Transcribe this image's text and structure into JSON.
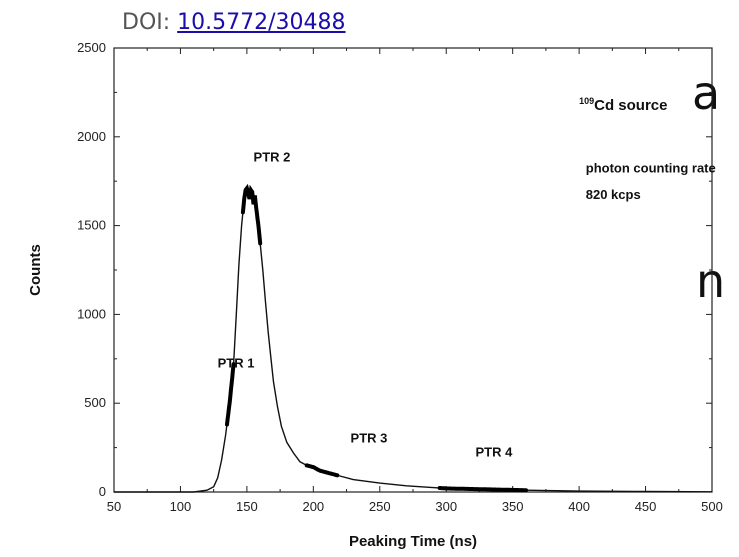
{
  "header": {
    "doi_prefix": "DOI:",
    "doi_link": "10.5772/30488"
  },
  "cropped_text": {
    "line1": "a",
    "line2": "n"
  },
  "chart_data": {
    "type": "line",
    "title": "",
    "xlabel": "Peaking Time (ns)",
    "ylabel": "Counts",
    "xlim": [
      50,
      500
    ],
    "ylim": [
      0,
      2500
    ],
    "xticks": [
      50,
      100,
      150,
      200,
      250,
      300,
      350,
      400,
      450,
      500
    ],
    "yticks": [
      0,
      500,
      1000,
      1500,
      2000,
      2500
    ],
    "grid": false,
    "legend": "none",
    "series": [
      {
        "x": [
          110,
          120,
          125,
          128,
          131,
          134,
          137,
          140,
          142,
          144,
          146,
          148,
          149,
          150,
          151,
          152,
          153,
          154,
          155,
          156,
          157,
          158,
          159,
          160,
          162,
          164,
          166,
          168,
          170,
          173,
          176,
          180,
          185,
          190,
          195,
          200,
          205,
          210,
          220,
          230,
          250,
          270,
          300,
          330,
          360,
          400,
          450,
          500
        ],
        "y": [
          0,
          10,
          30,
          80,
          180,
          320,
          500,
          720,
          1000,
          1280,
          1500,
          1650,
          1700,
          1710,
          1680,
          1650,
          1700,
          1690,
          1620,
          1670,
          1600,
          1540,
          1480,
          1400,
          1250,
          1070,
          900,
          760,
          620,
          480,
          370,
          280,
          220,
          170,
          150,
          140,
          120,
          110,
          90,
          70,
          50,
          35,
          20,
          15,
          10,
          5,
          3,
          1
        ]
      }
    ],
    "annotations": [
      {
        "text": "PTR 1",
        "x": 128,
        "y": 700
      },
      {
        "text": "PTR 2",
        "x": 155,
        "y": 1860
      },
      {
        "text": "PTR 3",
        "x": 228,
        "y": 280
      },
      {
        "text": "PTR 4",
        "x": 322,
        "y": 200
      },
      {
        "text_sup": "109",
        "text": "Cd source",
        "x": 400,
        "y": 2150
      },
      {
        "text": "photon counting rate",
        "x": 405,
        "y": 1800
      },
      {
        "text": "820 kcps",
        "x": 405,
        "y": 1650
      }
    ],
    "highlight_segments": [
      {
        "from": 135,
        "to": 140
      },
      {
        "from": 147,
        "to": 160
      },
      {
        "from": 195,
        "to": 218
      },
      {
        "from": 295,
        "to": 360
      }
    ]
  }
}
